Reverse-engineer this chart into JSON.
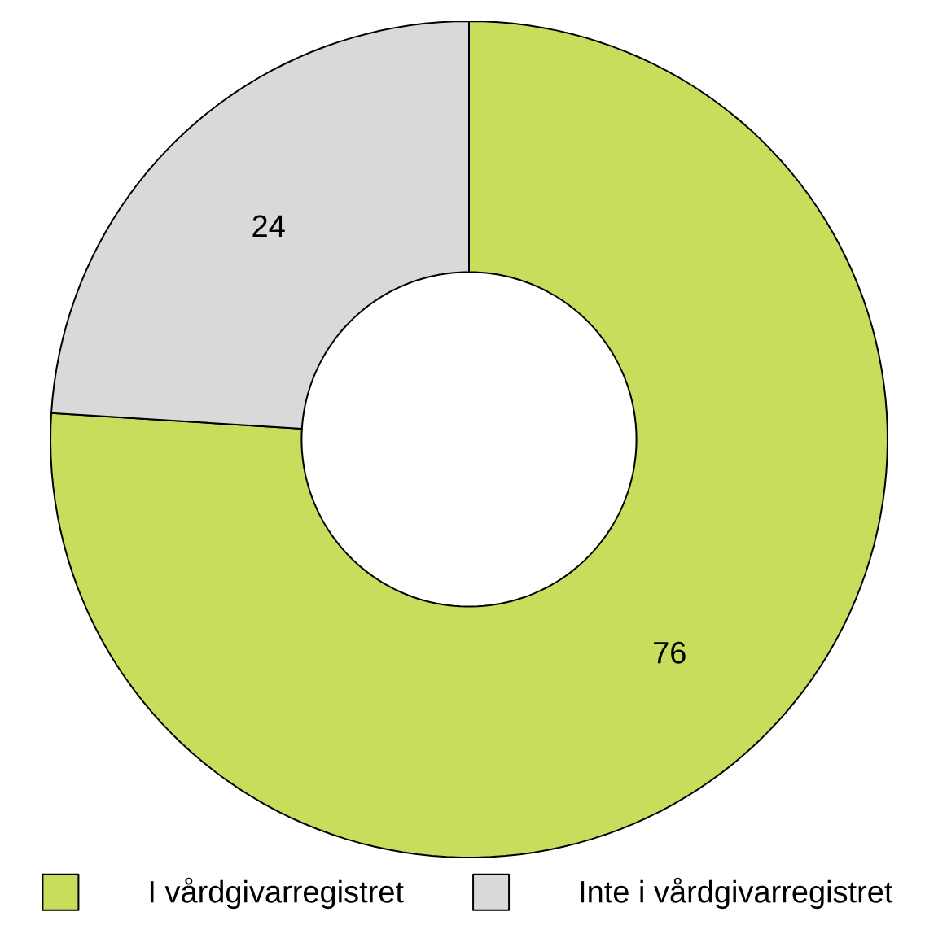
{
  "chart_data": {
    "type": "donut",
    "categories": [
      "I vårdgivarregistret",
      "Inte i vårdgivarregistret"
    ],
    "values": [
      76,
      24
    ],
    "colors": [
      "#c9dc5c",
      "#d9d9d9"
    ],
    "data_labels": true,
    "legend": "bottom"
  }
}
